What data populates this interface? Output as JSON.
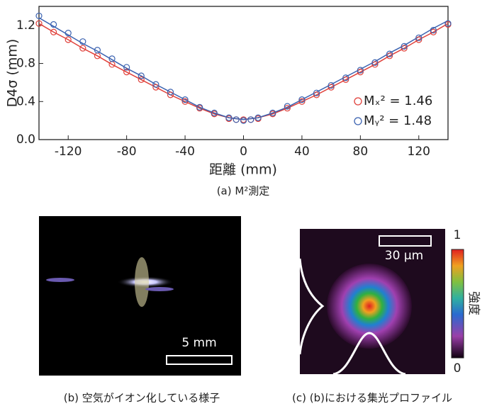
{
  "chart_data": {
    "type": "scatter",
    "x_label": "距離 (mm)",
    "y_label": "D4σ (mm)",
    "caption": "(a) M²測定",
    "x": [
      -140,
      -130,
      -120,
      -110,
      -100,
      -90,
      -80,
      -70,
      -60,
      -50,
      -40,
      -30,
      -20,
      -10,
      -5,
      0,
      5,
      10,
      20,
      30,
      40,
      50,
      60,
      70,
      80,
      90,
      100,
      110,
      120,
      130,
      140
    ],
    "series": [
      {
        "name": "Mₓ² = 1.46",
        "color": "#e0403a",
        "values": [
          1.22,
          1.13,
          1.05,
          0.96,
          0.88,
          0.79,
          0.71,
          0.63,
          0.55,
          0.47,
          0.4,
          0.33,
          0.27,
          0.22,
          0.21,
          0.21,
          0.21,
          0.22,
          0.27,
          0.33,
          0.4,
          0.47,
          0.55,
          0.63,
          0.71,
          0.79,
          0.88,
          0.96,
          1.05,
          1.13,
          1.21
        ]
      },
      {
        "name": "Mᵧ² = 1.48",
        "color": "#3b62b0",
        "values": [
          1.3,
          1.21,
          1.12,
          1.03,
          0.94,
          0.85,
          0.76,
          0.67,
          0.58,
          0.5,
          0.42,
          0.34,
          0.28,
          0.23,
          0.21,
          0.2,
          0.21,
          0.23,
          0.28,
          0.35,
          0.42,
          0.49,
          0.57,
          0.65,
          0.73,
          0.81,
          0.9,
          0.98,
          1.07,
          1.15,
          1.22
        ]
      }
    ],
    "fit_lines": [
      {
        "color": "#e0403a",
        "values": [
          1.22,
          1.13,
          1.05,
          0.96,
          0.88,
          0.79,
          0.71,
          0.63,
          0.55,
          0.47,
          0.4,
          0.33,
          0.27,
          0.23,
          0.22,
          0.21,
          0.22,
          0.23,
          0.27,
          0.33,
          0.4,
          0.47,
          0.55,
          0.63,
          0.71,
          0.79,
          0.88,
          0.96,
          1.05,
          1.13,
          1.22
        ]
      },
      {
        "color": "#3b62b0",
        "values": [
          1.28,
          1.19,
          1.1,
          1.01,
          0.93,
          0.84,
          0.75,
          0.67,
          0.58,
          0.5,
          0.42,
          0.34,
          0.28,
          0.23,
          0.22,
          0.21,
          0.22,
          0.23,
          0.28,
          0.34,
          0.42,
          0.5,
          0.58,
          0.66,
          0.74,
          0.82,
          0.91,
          0.99,
          1.08,
          1.17,
          1.25
        ]
      }
    ],
    "xlim": [
      -140,
      140
    ],
    "ylim": [
      0,
      1.4
    ],
    "xticks": [
      -120,
      -80,
      -40,
      0,
      40,
      80,
      120
    ],
    "yticks": [
      {
        "value": 0,
        "label": "0.0"
      },
      {
        "value": 0.4,
        "label": "0.4"
      },
      {
        "value": 0.8,
        "label": "0.8"
      },
      {
        "value": 1.2,
        "label": "1.2"
      }
    ]
  },
  "panel_b": {
    "scale_bar": "5 mm",
    "caption": "(b) 空気がイオン化している様子"
  },
  "panel_c": {
    "scale_bar": "30 μm",
    "colorbar_max": "1",
    "colorbar_min": "0",
    "colorbar_label": "強度",
    "caption": "(c) (b)における集光プロファイル"
  }
}
